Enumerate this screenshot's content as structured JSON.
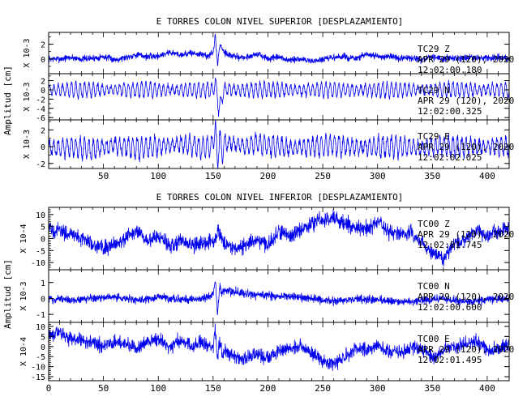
{
  "colors": {
    "trace": "#0000ee",
    "axis": "#000000",
    "background": "#ffffff"
  },
  "chart_data": [
    {
      "type": "line",
      "title": "E TORRES COLON NIVEL SUPERIOR [DESPLAZAMIENTO]",
      "ylabel": "Amplitud [cm]",
      "xlim": [
        0,
        420
      ],
      "xticks": [
        50,
        100,
        150,
        200,
        250,
        300,
        350,
        400
      ],
      "xtick_labels": [
        "50",
        "100",
        "150",
        "200",
        "250",
        "300",
        "350",
        "400"
      ],
      "panels": [
        {
          "channel": "TC29 Z",
          "station": "TC29",
          "component": "Z",
          "date": "APR 29 (120), 2020",
          "time": "12:02:00.180",
          "scale": "X 10-3",
          "ylim": [
            -2,
            3.6
          ],
          "yticks": [
            0,
            2
          ],
          "ytick_labels": [
            "0",
            "2"
          ],
          "x": [
            0,
            10,
            20,
            30,
            40,
            50,
            60,
            70,
            80,
            90,
            100,
            110,
            120,
            130,
            140,
            145,
            150,
            152,
            154,
            156,
            158,
            160,
            165,
            170,
            180,
            190,
            200,
            210,
            220,
            230,
            240,
            250,
            260,
            270,
            280,
            290,
            300,
            310,
            320,
            330,
            340,
            350,
            360,
            370,
            380,
            390,
            400,
            410,
            420
          ],
          "y": [
            0,
            0,
            0.2,
            0,
            0.1,
            0.3,
            -0.1,
            0.2,
            0.6,
            0.3,
            0.4,
            0.9,
            0.6,
            0.8,
            0.6,
            0.4,
            0.8,
            3.2,
            -0.8,
            1.8,
            1.6,
            1,
            0.5,
            0.3,
            0.2,
            0.7,
            0,
            0.2,
            -0.2,
            0,
            -0.3,
            -0.1,
            0.2,
            0.3,
            0,
            0.6,
            0.3,
            0.4,
            0,
            0.2,
            -0.2,
            0.3,
            0,
            0.2,
            0.1,
            0.2,
            0.1,
            0.2,
            0
          ],
          "noise": 0.35,
          "period": 0,
          "wave": 0
        },
        {
          "channel": "TC29 N",
          "station": "TC29",
          "component": "N",
          "date": "APR 29 (120), 2020",
          "time": "12:02:00.325",
          "scale": "X 10-3",
          "ylim": [
            -6.5,
            3.5
          ],
          "yticks": [
            2,
            0,
            -2,
            -4,
            -6
          ],
          "ytick_labels": [
            "2",
            "0",
            "-2",
            "-4",
            "-6"
          ],
          "x": [
            0,
            50,
            100,
            150,
            152,
            155,
            158,
            160,
            200,
            250,
            300,
            350,
            400,
            420
          ],
          "y": [
            0,
            0,
            0,
            0,
            2,
            -4,
            -2,
            0,
            0,
            0,
            0,
            0,
            0,
            0
          ],
          "noise": 0.4,
          "period": 4,
          "wave": 1.6
        },
        {
          "channel": "TC29 E",
          "station": "TC29",
          "component": "E",
          "date": "APR 29 (120), 2020",
          "time": "12:02:02.025",
          "scale": "X 10-3",
          "ylim": [
            -2.6,
            3.2
          ],
          "yticks": [
            2,
            0,
            -2
          ],
          "ytick_labels": [
            "2",
            "0",
            "-2"
          ],
          "x": [
            0,
            20,
            40,
            60,
            80,
            100,
            120,
            140,
            150,
            152,
            154,
            156,
            158,
            160,
            170,
            180,
            190,
            200,
            220,
            240,
            260,
            280,
            300,
            320,
            340,
            360,
            380,
            400,
            420
          ],
          "y": [
            -0.2,
            0,
            -0.4,
            0.2,
            -0.2,
            0,
            0.3,
            -0.1,
            0.2,
            2.8,
            -2.2,
            1.5,
            -1,
            0.4,
            0.3,
            0,
            0.4,
            0.1,
            -0.1,
            0,
            0.2,
            -0.1,
            0,
            0.1,
            -0.2,
            0.1,
            0,
            0,
            0
          ],
          "noise": 0.35,
          "period": 4,
          "wave": 1.2
        }
      ]
    },
    {
      "type": "line",
      "title": "E TORRES COLON NIVEL INFERIOR [DESPLAZAMIENTO]",
      "ylabel": "Amplitud [cm]",
      "xlim": [
        0,
        420
      ],
      "xticks": [
        0,
        50,
        100,
        150,
        200,
        250,
        300,
        350,
        400
      ],
      "xtick_labels": [
        "0",
        "50",
        "100",
        "150",
        "200",
        "250",
        "300",
        "350",
        "400"
      ],
      "panels": [
        {
          "channel": "TC00 Z",
          "station": "TC00",
          "component": "Z",
          "date": "APR 29 (120), 2020",
          "time": "12:02:01.745",
          "scale": "X 10-4",
          "ylim": [
            -13,
            13
          ],
          "yticks": [
            10,
            5,
            0,
            -5,
            -10
          ],
          "ytick_labels": [
            "10",
            "5",
            "0",
            "-5",
            "-10"
          ],
          "x": [
            0,
            10,
            20,
            30,
            40,
            50,
            60,
            70,
            80,
            90,
            100,
            110,
            120,
            130,
            140,
            150,
            155,
            160,
            170,
            180,
            190,
            200,
            210,
            220,
            230,
            240,
            250,
            260,
            270,
            280,
            290,
            300,
            310,
            320,
            330,
            340,
            350,
            360,
            370,
            380,
            390,
            400,
            410,
            420
          ],
          "y": [
            4,
            3,
            2,
            0,
            -2,
            -4,
            -2,
            0,
            3,
            -1,
            1,
            -3,
            -1,
            -3,
            -2,
            -1,
            3,
            -2,
            -4,
            -3,
            0,
            -3,
            3,
            1,
            4,
            6,
            8,
            9,
            6,
            5,
            4,
            7,
            3,
            2,
            3,
            -2,
            -6,
            -8,
            -2,
            -1,
            4,
            1,
            3,
            4
          ],
          "noise": 2.4,
          "period": 0,
          "wave": 0
        },
        {
          "channel": "TC00 N",
          "station": "TC00",
          "component": "N",
          "date": "APR 29 (120), 2020",
          "time": "12:02:00.600",
          "scale": "X 10-3",
          "ylim": [
            -1.5,
            1.8
          ],
          "yticks": [
            1,
            0,
            -1
          ],
          "ytick_labels": [
            "1",
            "0",
            "-1"
          ],
          "x": [
            0,
            20,
            40,
            60,
            80,
            100,
            120,
            140,
            150,
            152,
            154,
            156,
            158,
            160,
            170,
            180,
            200,
            220,
            240,
            260,
            280,
            300,
            320,
            340,
            360,
            380,
            400,
            410,
            420
          ],
          "y": [
            0,
            -0.1,
            0,
            0.1,
            -0.1,
            0.1,
            -0.1,
            0,
            0.2,
            1.2,
            -1,
            0.8,
            0.3,
            0.5,
            0.4,
            0.3,
            0.2,
            0.1,
            0,
            -0.2,
            0,
            -0.1,
            -0.2,
            -0.1,
            0,
            -0.2,
            -0.1,
            0,
            0
          ],
          "noise": 0.2,
          "period": 0,
          "wave": 0
        },
        {
          "channel": "TC00 E",
          "station": "TC00",
          "component": "E",
          "date": "APR 29 (120), 2020",
          "time": "12:02:01.495",
          "scale": "X 10-4",
          "ylim": [
            -17,
            12
          ],
          "yticks": [
            10,
            5,
            0,
            -5,
            -10,
            -15
          ],
          "ytick_labels": [
            "10",
            "5",
            "0",
            "-5",
            "-10",
            "-15"
          ],
          "x": [
            0,
            10,
            20,
            30,
            40,
            50,
            60,
            70,
            80,
            90,
            100,
            110,
            120,
            130,
            140,
            150,
            152,
            154,
            156,
            158,
            160,
            170,
            180,
            190,
            200,
            210,
            220,
            230,
            240,
            250,
            260,
            270,
            280,
            290,
            300,
            310,
            320,
            330,
            340,
            350,
            360,
            370,
            380,
            390,
            400,
            410,
            420
          ],
          "y": [
            6,
            7,
            4,
            3,
            2,
            0,
            2,
            1,
            -1,
            2,
            4,
            0,
            3,
            0,
            2,
            -1,
            9,
            -7,
            3,
            -3,
            -2,
            -5,
            -6,
            -4,
            -6,
            -2,
            -1,
            0,
            -3,
            -7,
            -9,
            -5,
            -1,
            -2,
            1,
            -2,
            -3,
            -1,
            -1,
            -6,
            -2,
            0,
            1,
            3,
            -2,
            -1,
            1
          ],
          "noise": 2.6,
          "period": 0,
          "wave": 0
        }
      ]
    }
  ]
}
